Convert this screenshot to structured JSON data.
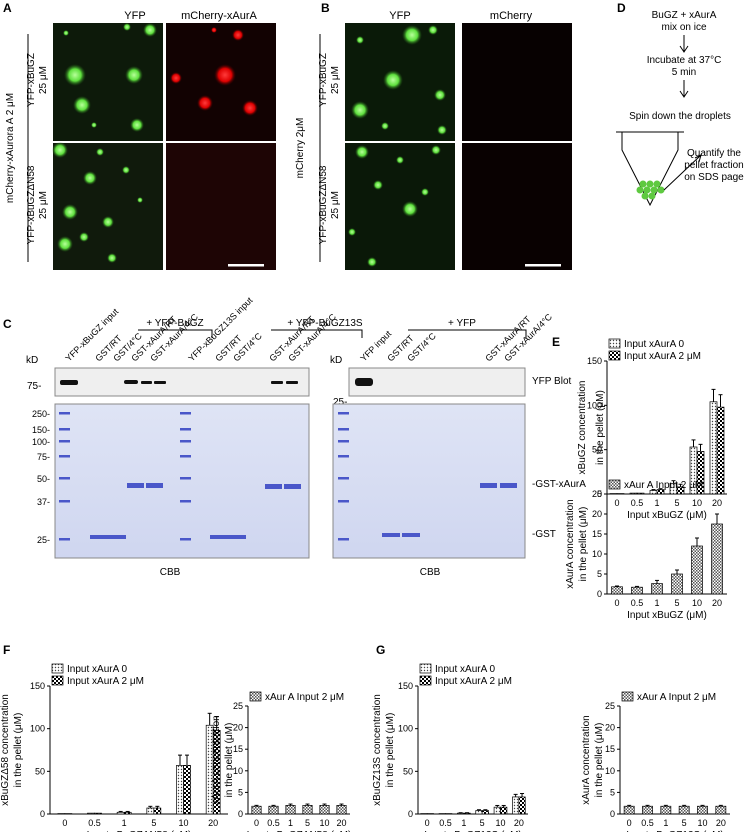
{
  "panel_letters": {
    "A": "A",
    "B": "B",
    "C": "C",
    "D": "D",
    "E": "E",
    "F": "F",
    "G": "G"
  },
  "panelA": {
    "col1": "YFP",
    "col2": "mCherry-xAurA",
    "side_main": "mCherry-xAurora A 2 μM",
    "row1a": "YFP-xBuGZ",
    "row1b": "25 μM",
    "row2a": "YFP-xBuGZΔN58",
    "row2b": "25 μM"
  },
  "panelB": {
    "col1": "YFP",
    "col2": "mCherry",
    "side_main": "mCherry 2μM",
    "row1a": "YFP-xBuGZ",
    "row1b": "25 μM",
    "row2a": "YFP-xBuGZΔN58",
    "row2b": "25 μM"
  },
  "panelD": {
    "line1": "BuGZ + xAurA",
    "line2": "mix on ice",
    "line3": "Incubate at 37°C",
    "line4": "5 min",
    "line5": "Spin down the droplets",
    "line6": "Quantify the",
    "line7": "pellet fraction",
    "line8": "on SDS page"
  },
  "panelC": {
    "group1": "+ YFP-BuGZ",
    "group2": "+ YFP-BuGZ13S",
    "group3": "+ YFP",
    "lanes_left": [
      "YFP-xBuGZ input",
      "GST/RT",
      "GST/4°C",
      "GST-xAurA/RT",
      "GST-xAurA/4°C",
      "YFP-xBuGZ13S input",
      "GST/RT",
      "GST/4°C",
      "GST-xAurA/RT",
      "GST-xAurA/4°C"
    ],
    "lanes_right": [
      "YFP input",
      "GST/RT",
      "GST/4°C",
      "GST-xAurA/RT",
      "GST-xAurA/4°C"
    ],
    "kd": "kD",
    "kd75": "75-",
    "kd25": "25-",
    "ladder": [
      "250",
      "150",
      "100",
      "75",
      "50",
      "37",
      "25"
    ],
    "yfp_blot": "YFP Blot",
    "gst_xaura": "-GST-xAurA",
    "gst": "-GST",
    "cbb": "CBB"
  },
  "legends": {
    "input0": "Input xAurA  0",
    "input2": "Input xAurA 2 μM",
    "aura_input2": "xAur A Input 2 μM"
  },
  "chart_data": [
    {
      "id": "E_top",
      "type": "bar",
      "categories": [
        "0",
        "0.5",
        "1",
        "5",
        "10",
        "20"
      ],
      "series": [
        {
          "name": "Input xAurA  0",
          "values": [
            0.5,
            1,
            4,
            12,
            53,
            104
          ],
          "err": [
            0,
            0,
            1,
            3,
            8,
            14
          ]
        },
        {
          "name": "Input xAurA 2 μM",
          "values": [
            0.5,
            1,
            5,
            8,
            48,
            98
          ],
          "err": [
            0,
            0,
            1,
            3,
            8,
            14
          ]
        }
      ],
      "xlabel": "Input xBuGZ (μM)",
      "ylabel": [
        "xBuGZ concentration",
        "in the pellet (μM)"
      ],
      "ylim": [
        0,
        150
      ],
      "yticks": [
        0,
        50,
        100,
        150
      ]
    },
    {
      "id": "E_bottom",
      "type": "bar",
      "categories": [
        "0",
        "0.5",
        "1",
        "5",
        "10",
        "20"
      ],
      "series": [
        {
          "name": "xAur A Input 2 μM",
          "values": [
            1.8,
            1.7,
            2.6,
            5,
            12,
            17.5
          ],
          "err": [
            0.2,
            0.2,
            0.8,
            1,
            2,
            2.5
          ]
        }
      ],
      "xlabel": "Input xBuGZ (μM)",
      "ylabel": [
        "xAurA concentration",
        "in the pellet (μM)"
      ],
      "ylim": [
        0,
        25
      ],
      "yticks": [
        0,
        5,
        10,
        15,
        20,
        25
      ]
    },
    {
      "id": "F_left",
      "type": "bar",
      "categories": [
        "0",
        "0.5",
        "1",
        "5",
        "10",
        "20"
      ],
      "series": [
        {
          "name": "Input xAurA  0",
          "values": [
            0.5,
            1,
            2,
            7,
            57,
            104
          ],
          "err": [
            0,
            0,
            1,
            2,
            12,
            14
          ]
        },
        {
          "name": "Input xAurA 2 μM",
          "values": [
            0.5,
            1,
            2,
            7,
            57,
            98
          ],
          "err": [
            0,
            0,
            1,
            2,
            12,
            16
          ]
        }
      ],
      "xlabel": "Input xBuGZΔN58 (μM)",
      "ylabel": [
        "xBuGZΔ58 concentration",
        "in the pellet (μM)"
      ],
      "ylim": [
        0,
        150
      ],
      "yticks": [
        0,
        50,
        100,
        150
      ]
    },
    {
      "id": "F_right",
      "type": "bar",
      "categories": [
        "0",
        "0.5",
        "1",
        "5",
        "10",
        "20"
      ],
      "series": [
        {
          "name": "xAur A Input 2 μM",
          "values": [
            1.8,
            1.8,
            2,
            2,
            2,
            2
          ],
          "err": [
            0.2,
            0.2,
            0.3,
            0.3,
            0.3,
            0.3
          ]
        }
      ],
      "xlabel": "Input xBuGZΔN58 (μM)",
      "ylabel": [
        "xAurA concentration",
        "in the pellet (μM)"
      ],
      "ylim": [
        0,
        25
      ],
      "yticks": [
        0,
        5,
        10,
        15,
        20,
        25
      ]
    },
    {
      "id": "G_left",
      "type": "bar",
      "categories": [
        "0",
        "0.5",
        "1",
        "5",
        "10",
        "20"
      ],
      "series": [
        {
          "name": "Input xAurA  0",
          "values": [
            0.5,
            0.5,
            1,
            4,
            8,
            20
          ],
          "err": [
            0,
            0,
            0.5,
            1,
            2,
            3
          ]
        },
        {
          "name": "Input xAurA 2 μM",
          "values": [
            0.5,
            0.5,
            1,
            4,
            8,
            20
          ],
          "err": [
            0,
            0,
            0.5,
            1,
            2,
            4
          ]
        }
      ],
      "xlabel": "Input xBuGZ13S (μM)",
      "ylabel": [
        "xBuGZ13S concentration",
        "in the pellet (μM)"
      ],
      "ylim": [
        0,
        150
      ],
      "yticks": [
        0,
        50,
        100,
        150
      ]
    },
    {
      "id": "G_right",
      "type": "bar",
      "categories": [
        "0",
        "0.5",
        "1",
        "5",
        "10",
        "20"
      ],
      "series": [
        {
          "name": "xAur A Input 2 μM",
          "values": [
            1.8,
            1.8,
            1.8,
            1.8,
            1.8,
            1.8
          ],
          "err": [
            0.2,
            0.2,
            0.2,
            0.2,
            0.2,
            0.2
          ]
        }
      ],
      "xlabel": "Input xBuGZ13S (μM)",
      "ylabel": [
        "xAurA concentration",
        "in the pellet (μM)"
      ],
      "ylim": [
        0,
        25
      ],
      "yticks": [
        0,
        5,
        10,
        15,
        20,
        25
      ]
    }
  ]
}
